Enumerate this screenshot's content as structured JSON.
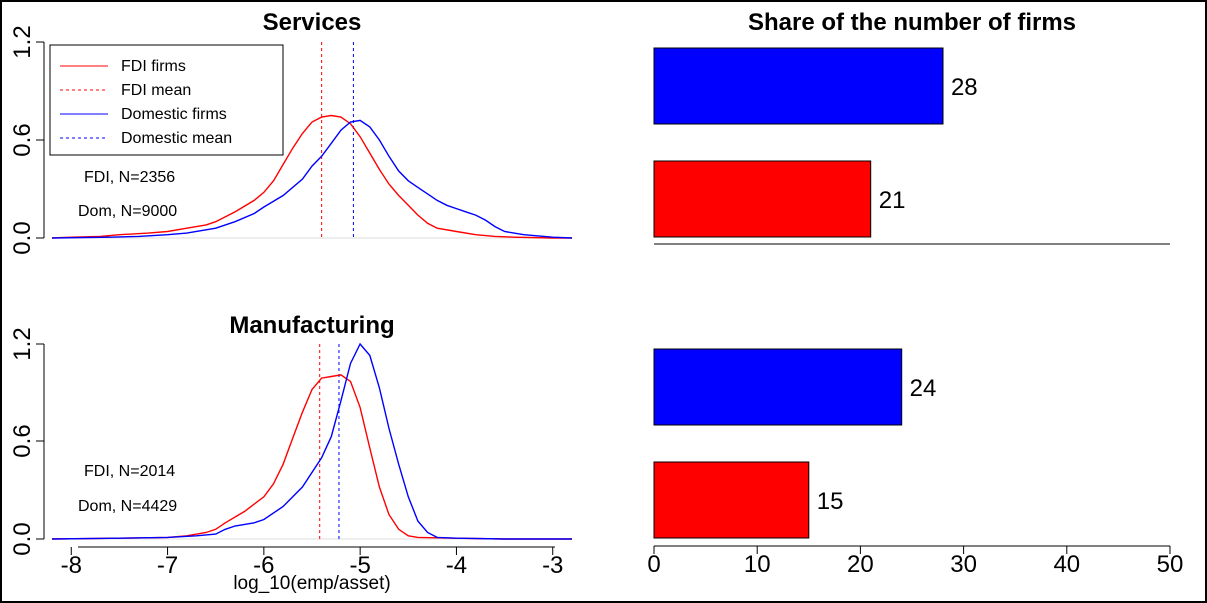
{
  "colors": {
    "fdi": "#ff0000",
    "domestic": "#0000ff",
    "axis": "#000000",
    "frame": "#000000"
  },
  "chart_data": [
    {
      "type": "line",
      "title": "Services",
      "xlabel": "",
      "ylabel": "",
      "xlim": [
        -8.2,
        -2.8
      ],
      "ylim": [
        0,
        1.2
      ],
      "yticks": [
        "0.0",
        "0.6",
        "1.2"
      ],
      "legend": {
        "placement": "top-left",
        "entries": [
          "FDI firms",
          "FDI mean",
          "Domestic firms",
          "Domestic mean"
        ]
      },
      "annotations": [
        "FDI, N=2356",
        "Dom, N=9000"
      ],
      "means": {
        "fdi": -5.4,
        "domestic": -5.07
      },
      "series": [
        {
          "name": "FDI firms",
          "color": "#ff0000",
          "points": [
            [
              -8.2,
              0.0
            ],
            [
              -8.0,
              0.005
            ],
            [
              -7.7,
              0.01
            ],
            [
              -7.5,
              0.02
            ],
            [
              -7.2,
              0.03
            ],
            [
              -7.0,
              0.04
            ],
            [
              -6.8,
              0.06
            ],
            [
              -6.6,
              0.08
            ],
            [
              -6.5,
              0.1
            ],
            [
              -6.3,
              0.16
            ],
            [
              -6.1,
              0.23
            ],
            [
              -6.0,
              0.28
            ],
            [
              -5.9,
              0.35
            ],
            [
              -5.8,
              0.45
            ],
            [
              -5.7,
              0.55
            ],
            [
              -5.6,
              0.64
            ],
            [
              -5.5,
              0.71
            ],
            [
              -5.4,
              0.74
            ],
            [
              -5.3,
              0.75
            ],
            [
              -5.2,
              0.74
            ],
            [
              -5.1,
              0.7
            ],
            [
              -5.0,
              0.62
            ],
            [
              -4.9,
              0.52
            ],
            [
              -4.8,
              0.42
            ],
            [
              -4.7,
              0.33
            ],
            [
              -4.6,
              0.26
            ],
            [
              -4.5,
              0.2
            ],
            [
              -4.4,
              0.14
            ],
            [
              -4.3,
              0.09
            ],
            [
              -4.2,
              0.06
            ],
            [
              -4.0,
              0.04
            ],
            [
              -3.8,
              0.02
            ],
            [
              -3.6,
              0.01
            ],
            [
              -3.4,
              0.005
            ],
            [
              -3.0,
              0.0
            ],
            [
              -2.8,
              0.0
            ]
          ]
        },
        {
          "name": "Domestic firms",
          "color": "#0000ff",
          "points": [
            [
              -8.2,
              0.0
            ],
            [
              -7.6,
              0.005
            ],
            [
              -7.3,
              0.01
            ],
            [
              -7.0,
              0.02
            ],
            [
              -6.8,
              0.03
            ],
            [
              -6.6,
              0.05
            ],
            [
              -6.5,
              0.06
            ],
            [
              -6.3,
              0.1
            ],
            [
              -6.1,
              0.15
            ],
            [
              -6.0,
              0.19
            ],
            [
              -5.8,
              0.26
            ],
            [
              -5.6,
              0.36
            ],
            [
              -5.5,
              0.44
            ],
            [
              -5.4,
              0.5
            ],
            [
              -5.3,
              0.58
            ],
            [
              -5.2,
              0.66
            ],
            [
              -5.1,
              0.71
            ],
            [
              -5.0,
              0.72
            ],
            [
              -4.9,
              0.68
            ],
            [
              -4.8,
              0.6
            ],
            [
              -4.7,
              0.5
            ],
            [
              -4.6,
              0.41
            ],
            [
              -4.5,
              0.35
            ],
            [
              -4.4,
              0.31
            ],
            [
              -4.3,
              0.27
            ],
            [
              -4.2,
              0.23
            ],
            [
              -4.1,
              0.2
            ],
            [
              -4.0,
              0.18
            ],
            [
              -3.9,
              0.16
            ],
            [
              -3.8,
              0.14
            ],
            [
              -3.7,
              0.11
            ],
            [
              -3.6,
              0.07
            ],
            [
              -3.5,
              0.04
            ],
            [
              -3.3,
              0.02
            ],
            [
              -3.0,
              0.005
            ],
            [
              -2.8,
              0.0
            ]
          ]
        }
      ]
    },
    {
      "type": "line",
      "title": "Manufacturing",
      "xlabel": "log_10(emp/asset)",
      "ylabel": "",
      "xlim": [
        -8.2,
        -2.8
      ],
      "ylim": [
        0,
        1.2
      ],
      "yticks": [
        "0.0",
        "0.6",
        "1.2"
      ],
      "xticks": [
        "-8",
        "-7",
        "-6",
        "-5",
        "-4",
        "-3"
      ],
      "annotations": [
        "FDI, N=2014",
        "Dom, N=4429"
      ],
      "means": {
        "fdi": -5.42,
        "domestic": -5.22
      },
      "series": [
        {
          "name": "FDI firms",
          "color": "#ff0000",
          "points": [
            [
              -8.2,
              0.0
            ],
            [
              -7.5,
              0.005
            ],
            [
              -7.0,
              0.01
            ],
            [
              -6.8,
              0.02
            ],
            [
              -6.6,
              0.04
            ],
            [
              -6.5,
              0.06
            ],
            [
              -6.4,
              0.1
            ],
            [
              -6.2,
              0.17
            ],
            [
              -6.0,
              0.26
            ],
            [
              -5.9,
              0.34
            ],
            [
              -5.8,
              0.46
            ],
            [
              -5.7,
              0.62
            ],
            [
              -5.6,
              0.78
            ],
            [
              -5.5,
              0.92
            ],
            [
              -5.4,
              0.99
            ],
            [
              -5.3,
              1.0
            ],
            [
              -5.2,
              1.01
            ],
            [
              -5.1,
              0.97
            ],
            [
              -5.0,
              0.81
            ],
            [
              -4.9,
              0.56
            ],
            [
              -4.8,
              0.32
            ],
            [
              -4.7,
              0.15
            ],
            [
              -4.6,
              0.06
            ],
            [
              -4.5,
              0.02
            ],
            [
              -4.4,
              0.01
            ],
            [
              -4.0,
              0.005
            ],
            [
              -3.5,
              0.0
            ],
            [
              -2.8,
              0.0
            ]
          ]
        },
        {
          "name": "Domestic firms",
          "color": "#0000ff",
          "points": [
            [
              -8.2,
              0.0
            ],
            [
              -7.5,
              0.005
            ],
            [
              -7.0,
              0.01
            ],
            [
              -6.7,
              0.02
            ],
            [
              -6.5,
              0.03
            ],
            [
              -6.4,
              0.06
            ],
            [
              -6.3,
              0.08
            ],
            [
              -6.1,
              0.1
            ],
            [
              -6.0,
              0.12
            ],
            [
              -5.8,
              0.2
            ],
            [
              -5.6,
              0.32
            ],
            [
              -5.4,
              0.5
            ],
            [
              -5.3,
              0.63
            ],
            [
              -5.2,
              0.85
            ],
            [
              -5.1,
              1.08
            ],
            [
              -5.0,
              1.2
            ],
            [
              -4.9,
              1.13
            ],
            [
              -4.8,
              0.93
            ],
            [
              -4.7,
              0.68
            ],
            [
              -4.6,
              0.46
            ],
            [
              -4.5,
              0.26
            ],
            [
              -4.4,
              0.11
            ],
            [
              -4.3,
              0.04
            ],
            [
              -4.2,
              0.01
            ],
            [
              -4.0,
              0.005
            ],
            [
              -3.5,
              0.0
            ],
            [
              -2.8,
              0.0
            ]
          ]
        }
      ]
    },
    {
      "type": "bar",
      "orientation": "horizontal",
      "title": "Share of the number of firms",
      "xlim": [
        0,
        50
      ],
      "xticks": [
        "0",
        "10",
        "20",
        "30",
        "40",
        "50"
      ],
      "groups": [
        {
          "panel": "Services",
          "bars": [
            {
              "series": "Domestic firms",
              "value": 28,
              "label": "28",
              "color": "#0000ff"
            },
            {
              "series": "FDI firms",
              "value": 21,
              "label": "21",
              "color": "#ff0000"
            }
          ]
        },
        {
          "panel": "Manufacturing",
          "bars": [
            {
              "series": "Domestic firms",
              "value": 24,
              "label": "24",
              "color": "#0000ff"
            },
            {
              "series": "FDI firms",
              "value": 15,
              "label": "15",
              "color": "#ff0000"
            }
          ]
        }
      ]
    }
  ]
}
